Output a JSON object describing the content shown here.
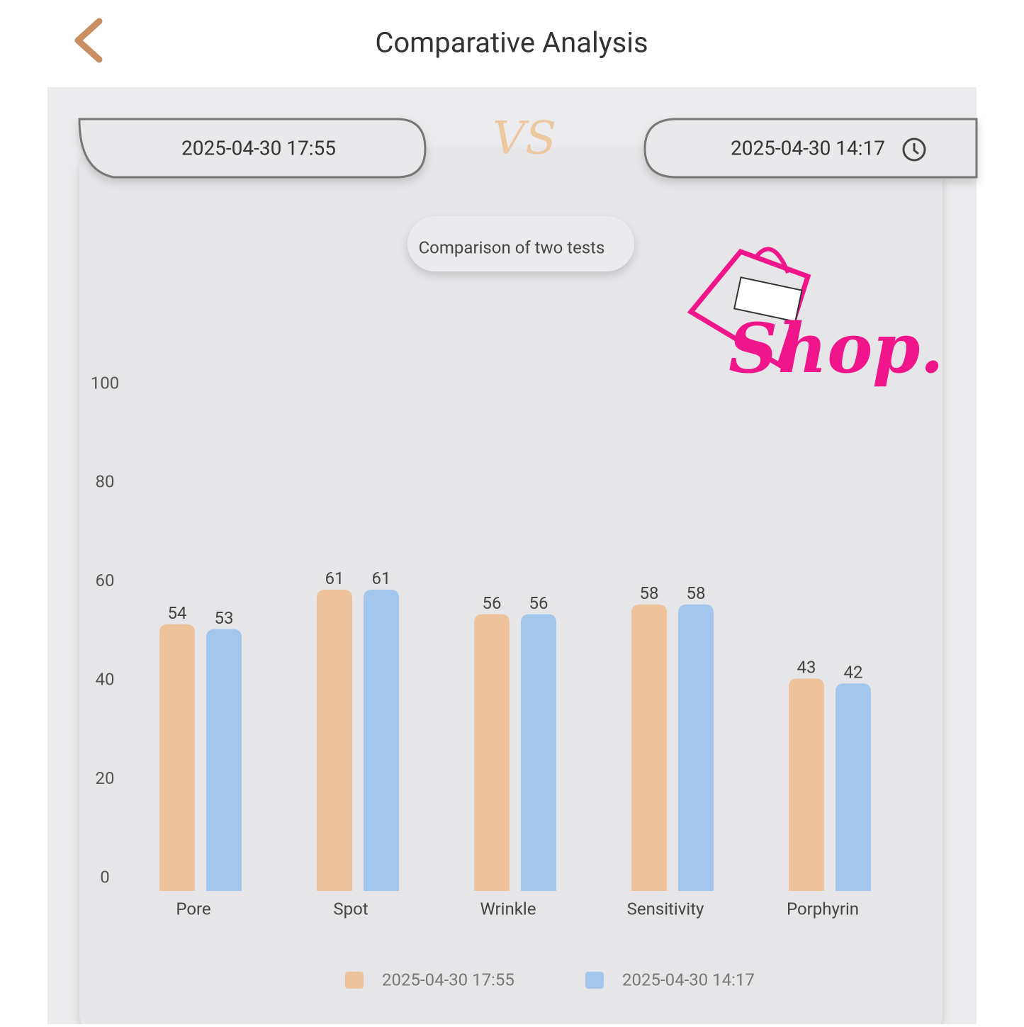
{
  "header": {
    "title": "Comparative Analysis"
  },
  "compare": {
    "left_date": "2025-04-30 17:55",
    "vs": "VS",
    "right_date": "2025-04-30 14:17"
  },
  "watermark": {
    "text": "Shop."
  },
  "chart_data": {
    "type": "bar",
    "subtitle": "Comparison of two tests",
    "categories": [
      "Pore",
      "Spot",
      "Wrinkle",
      "Sensitivity",
      "Porphyrin"
    ],
    "series": [
      {
        "name": "2025-04-30 17:55",
        "color": "#eec29a",
        "values": [
          54,
          61,
          56,
          58,
          43
        ]
      },
      {
        "name": "2025-04-30 14:17",
        "color": "#a3c6ec",
        "values": [
          53,
          61,
          56,
          58,
          42
        ]
      }
    ],
    "ylim": [
      0,
      100
    ],
    "yticks": [
      0,
      20,
      40,
      60,
      80,
      100
    ],
    "grid": false,
    "legend": "bottom"
  }
}
